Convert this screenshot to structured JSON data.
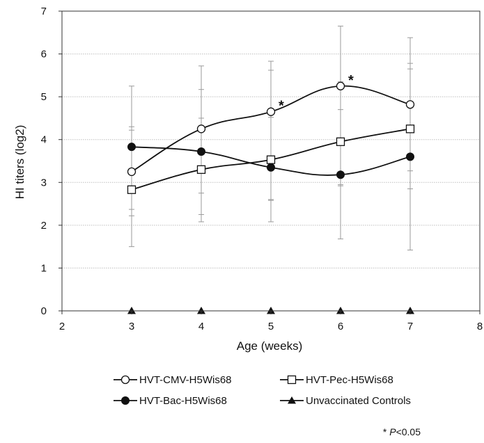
{
  "chart_data": {
    "type": "line",
    "xlabel": "Age (weeks)",
    "ylabel": "HI titers (log2)",
    "xlim": [
      2,
      8
    ],
    "ylim": [
      0,
      7
    ],
    "xticks": [
      "2",
      "3",
      "4",
      "5",
      "6",
      "7",
      "8"
    ],
    "yticks": [
      "0",
      "1",
      "2",
      "3",
      "4",
      "5",
      "6",
      "7"
    ],
    "grid": "horizontal",
    "series": [
      {
        "name": "HVT-CMV-H5Wis68",
        "marker": "circle-open",
        "smooth": true,
        "x": [
          3,
          4,
          5,
          6,
          7
        ],
        "y": [
          3.25,
          4.25,
          4.65,
          5.25,
          4.82
        ],
        "err_high": [
          5.25,
          5.72,
          5.83,
          6.65,
          6.38
        ],
        "err_low": [
          1.5,
          2.25,
          2.6,
          2.95,
          3.27
        ]
      },
      {
        "name": "HVT-Pec-H5Wis68",
        "marker": "square-open",
        "smooth": true,
        "x": [
          3,
          4,
          5,
          6,
          7
        ],
        "y": [
          2.83,
          3.3,
          3.53,
          3.95,
          4.25
        ],
        "err_high": [
          4.22,
          4.5,
          4.52,
          4.7,
          5.65
        ],
        "err_low": [
          2.22,
          2.08,
          2.08,
          1.68,
          2.85
        ]
      },
      {
        "name": "HVT-Bac-H5Wis68",
        "marker": "circle-filled",
        "smooth": true,
        "x": [
          3,
          4,
          5,
          6,
          7
        ],
        "y": [
          3.83,
          3.72,
          3.35,
          3.18,
          3.6
        ],
        "err_high": [
          4.3,
          5.17,
          5.62,
          5.35,
          5.78
        ],
        "err_low": [
          2.37,
          2.75,
          2.58,
          2.92,
          1.42
        ]
      },
      {
        "name": "Unvaccinated Controls",
        "marker": "triangle-filled",
        "smooth": false,
        "x": [
          3,
          4,
          5,
          6,
          7
        ],
        "y": [
          0,
          0,
          0,
          0,
          0
        ]
      }
    ],
    "annotations": [
      {
        "text": "*",
        "x": 5,
        "near_series": "HVT-CMV-H5Wis68"
      },
      {
        "text": "*",
        "x": 6,
        "near_series": "HVT-CMV-H5Wis68"
      }
    ],
    "footnote": {
      "prefix": "* ",
      "italic": "P",
      "suffix": "<0.05"
    },
    "legend_position": "bottom"
  },
  "colors": {
    "line": "#111111",
    "grid": "#bfbfbf",
    "errorbar": "#9a9a9a"
  }
}
